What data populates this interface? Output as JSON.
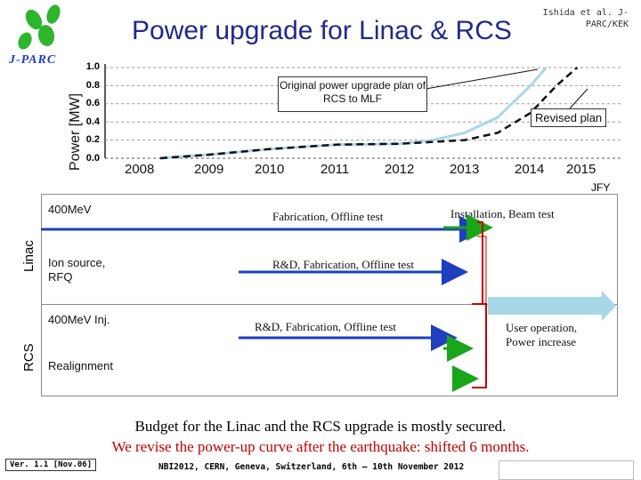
{
  "title": "Power upgrade for Linac & RCS",
  "credit": "Ishida et al. J-PARC/KEK",
  "logo_text": "J-PARC",
  "chart_data": {
    "type": "line",
    "ylabel": "Power [MW]",
    "xlabel": "JFY",
    "y_ticks": [
      "1.0",
      "0.8",
      "0.6",
      "0.4",
      "0.2",
      "0.0"
    ],
    "x_ticks": [
      "2008",
      "2009",
      "2010",
      "2011",
      "2012",
      "2013",
      "2014",
      "2015"
    ],
    "ylim": [
      0,
      1
    ],
    "series": [
      {
        "name": "Original power upgrade plan of RCS to MLF",
        "style": "light blue solid",
        "x": [
          2008.3,
          2009,
          2010,
          2011,
          2012,
          2012.5,
          2013.0,
          2013.5,
          2014.0,
          2014.3
        ],
        "y": [
          0.0,
          0.04,
          0.1,
          0.15,
          0.16,
          0.2,
          0.28,
          0.45,
          0.8,
          1.0
        ]
      },
      {
        "name": "Revised plan",
        "style": "black dashed",
        "x": [
          2008.3,
          2009,
          2010,
          2011,
          2012,
          2013,
          2013.5,
          2014.0,
          2014.5,
          2014.9
        ],
        "y": [
          0.0,
          0.04,
          0.1,
          0.15,
          0.16,
          0.2,
          0.28,
          0.5,
          0.8,
          1.0
        ]
      }
    ]
  },
  "callout_original": "Original power upgrade plan of RCS to MLF",
  "callout_revised": "Revised plan",
  "linac_label": "Linac",
  "rcs_label": "RCS",
  "rows": {
    "r1": "400MeV",
    "r2": "Ion source, RFQ",
    "r3": "400MeV Inj.",
    "r4": "Realignment"
  },
  "tasks": {
    "fab_offline": "Fabrication, Offline test",
    "install_beam": "Installation, Beam test",
    "rd_fab_offline_1": "R&D, Fabrication, Offline test",
    "rd_fab_offline_2": "R&D, Fabrication, Offline test",
    "user_op": "User operation, Power increase"
  },
  "footer_line1": "Budget for the Linac and the RCS upgrade is mostly secured.",
  "footer_line2": "We revise the power-up curve after the earthquake: shifted 6 months.",
  "version": "Ver. 1.1 [Nov.06]",
  "conference": "NBI2012, CERN, Geneva, Switzerland, 6th – 10th November 2012",
  "colors": {
    "title": "#1f2a8a",
    "bar_blue": "#1f3fbf",
    "green": "#1aa51a",
    "red": "#c00000",
    "light_blue": "#a8d8e8"
  }
}
